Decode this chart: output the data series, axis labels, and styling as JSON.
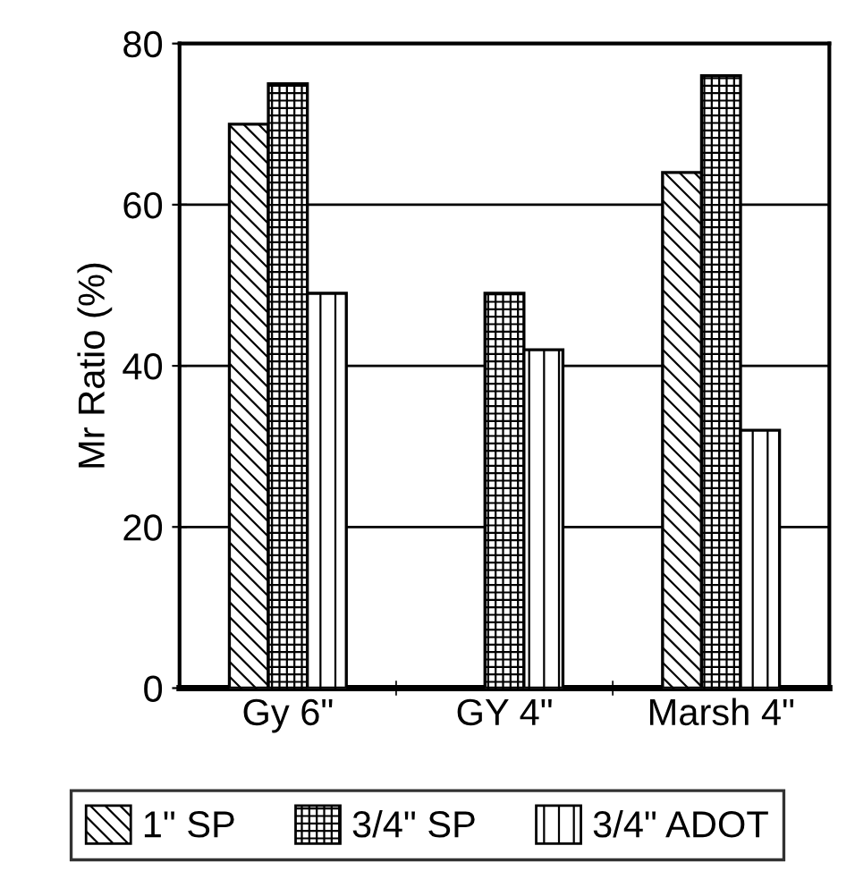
{
  "chart_data": {
    "type": "bar",
    "ylabel": "Mr Ratio (%)",
    "categories": [
      "Gy 6\"",
      "GY 4\"",
      "Marsh 4\""
    ],
    "series": [
      {
        "name": "1\" SP",
        "color": "#000000",
        "values": [
          70,
          null,
          64
        ]
      },
      {
        "name": "3/4\" SP",
        "color": "#000000",
        "values": [
          75,
          49,
          76
        ]
      },
      {
        "name": "3/4\" ADOT",
        "color": "#000000",
        "values": [
          49,
          42,
          32
        ]
      }
    ],
    "ylim": [
      0,
      80
    ],
    "yticks": [
      0,
      20,
      40,
      60,
      80
    ],
    "grid": "y",
    "legend": "bottom"
  }
}
